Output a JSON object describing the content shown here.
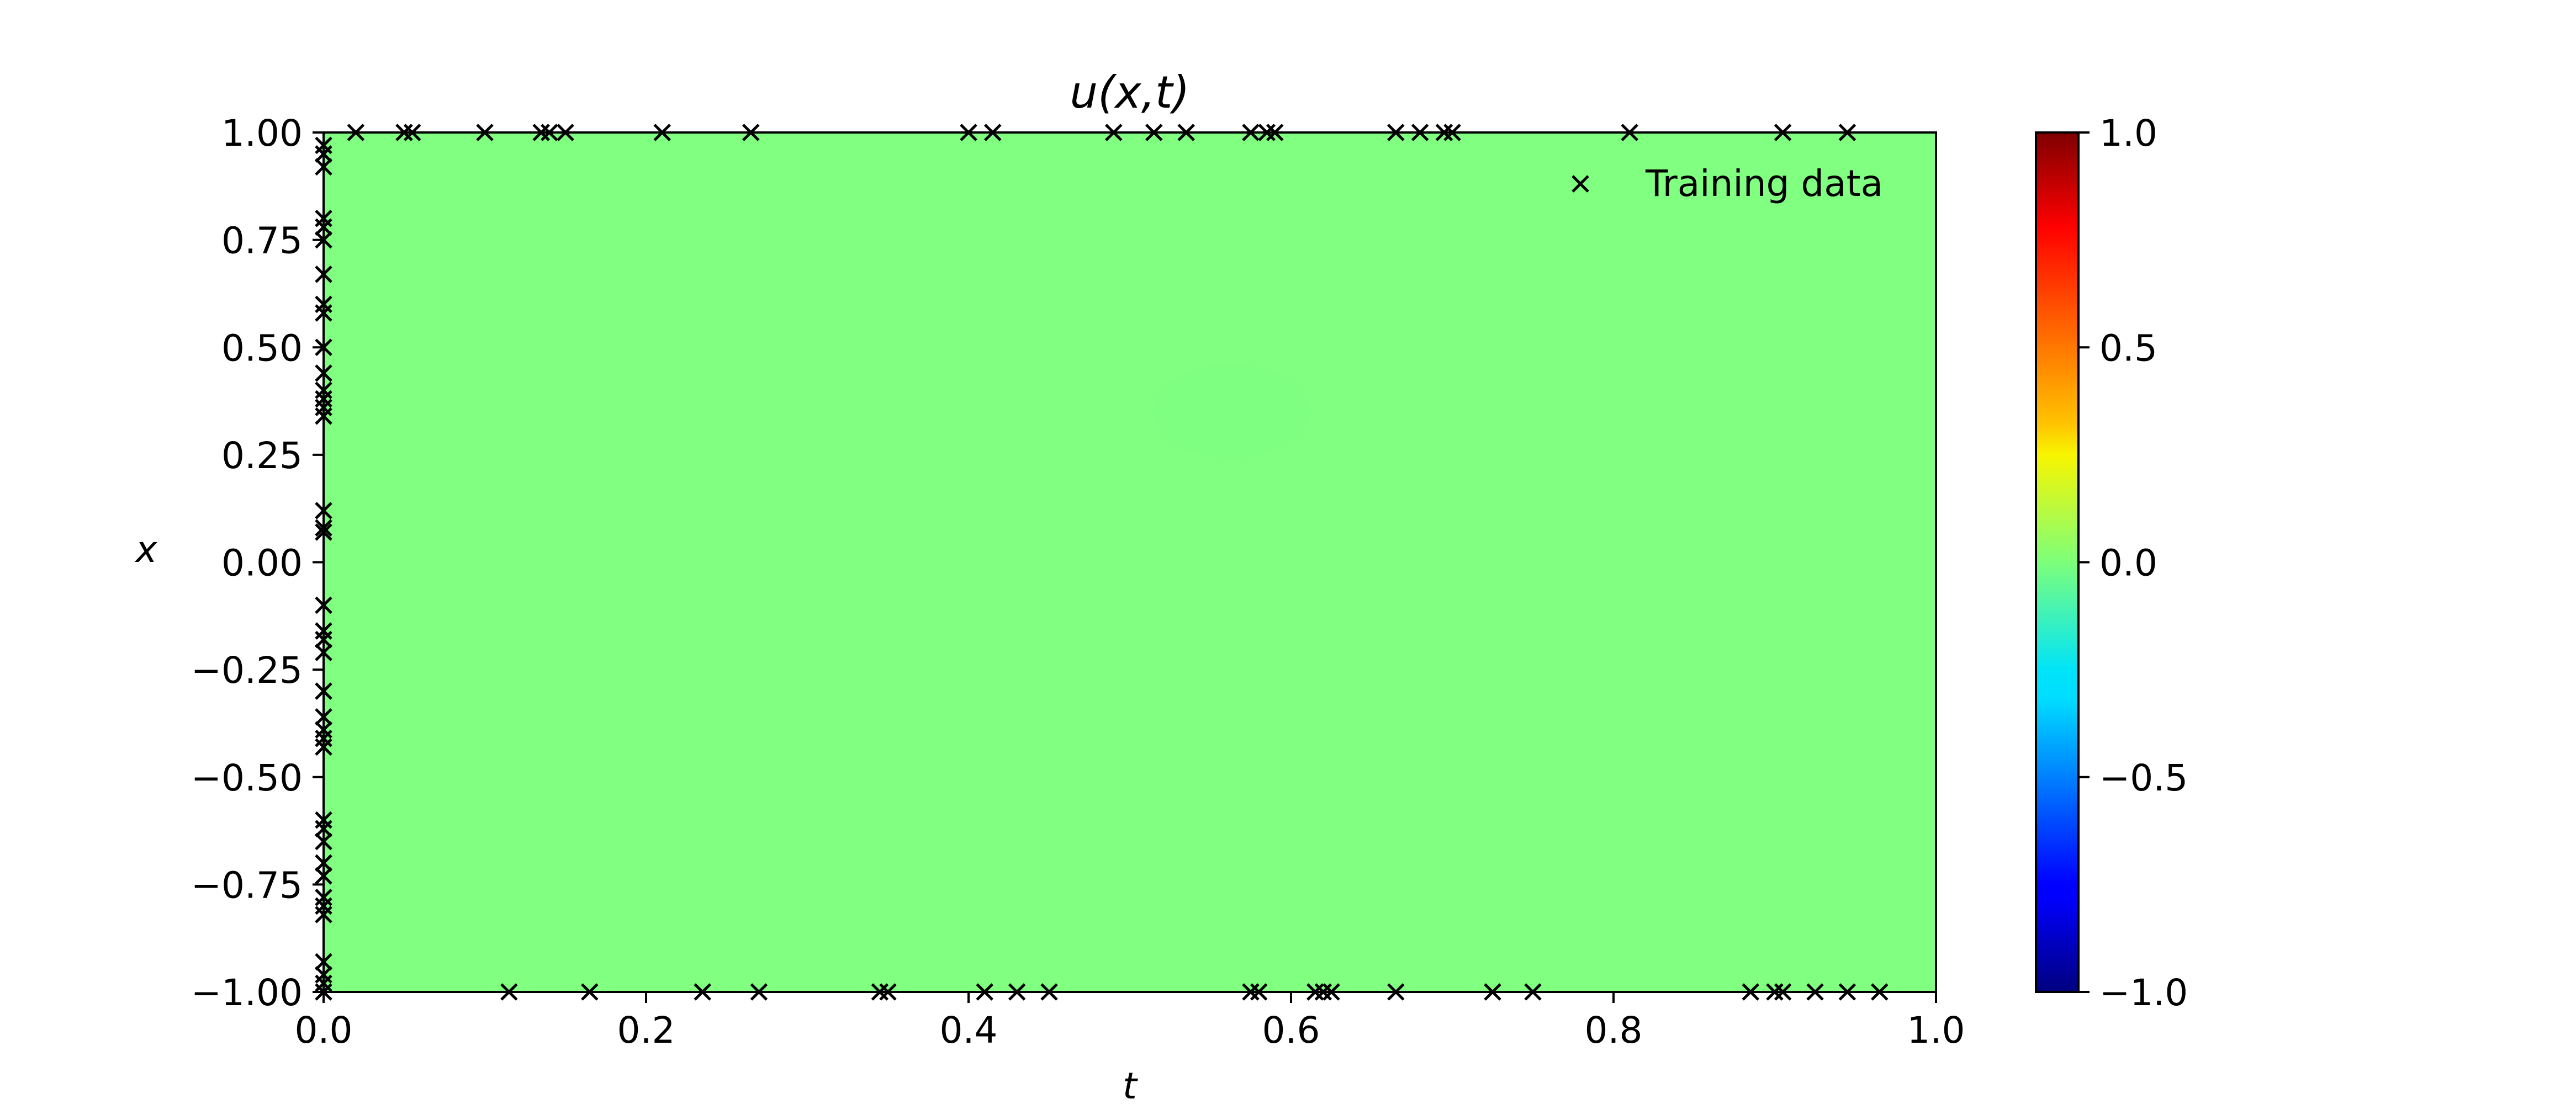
{
  "chart_data": {
    "type": "heatmap",
    "title": "u(x,t)",
    "xlabel": "t",
    "ylabel": "x",
    "xlim": [
      0.0,
      1.0
    ],
    "ylim": [
      -1.0,
      1.0
    ],
    "xticks": [
      "0.0",
      "0.2",
      "0.4",
      "0.6",
      "0.8",
      "1.0"
    ],
    "yticks": [
      "1.00",
      "0.75",
      "0.50",
      "0.25",
      "0.00",
      "−0.25",
      "−0.50",
      "−0.75",
      "−1.00"
    ],
    "field_value": 0.0,
    "field_color": "#80ff80",
    "colormap": "jet",
    "colorbar": {
      "range": [
        -1.0,
        1.0
      ],
      "ticks": [
        "1.0",
        "0.5",
        "0.0",
        "−0.5",
        "−1.0"
      ]
    },
    "legend": {
      "label": "Training data",
      "position": "top-right",
      "marker": "x"
    },
    "training_data": {
      "x_at_t0": [
        0.97,
        0.95,
        0.92,
        0.8,
        0.78,
        0.75,
        0.67,
        0.6,
        0.58,
        0.5,
        0.44,
        0.4,
        0.38,
        0.36,
        0.34,
        0.12,
        0.08,
        0.07,
        -0.1,
        -0.16,
        -0.18,
        -0.21,
        -0.3,
        -0.36,
        -0.39,
        -0.41,
        -0.43,
        -0.6,
        -0.62,
        -0.65,
        -0.7,
        -0.73,
        -0.78,
        -0.8,
        -0.82,
        -0.93,
        -0.96,
        -0.98
      ],
      "t_at_x_top": [
        0.02,
        0.05,
        0.055,
        0.1,
        0.135,
        0.14,
        0.15,
        0.21,
        0.265,
        0.4,
        0.415,
        0.49,
        0.515,
        0.535,
        0.575,
        0.585,
        0.59,
        0.665,
        0.68,
        0.695,
        0.7,
        0.81,
        0.905,
        0.945
      ],
      "t_at_x_bottom": [
        0.0,
        0.115,
        0.165,
        0.235,
        0.27,
        0.345,
        0.35,
        0.41,
        0.43,
        0.45,
        0.575,
        0.58,
        0.615,
        0.62,
        0.625,
        0.665,
        0.725,
        0.75,
        0.885,
        0.9,
        0.905,
        0.925,
        0.945,
        0.965
      ]
    }
  }
}
